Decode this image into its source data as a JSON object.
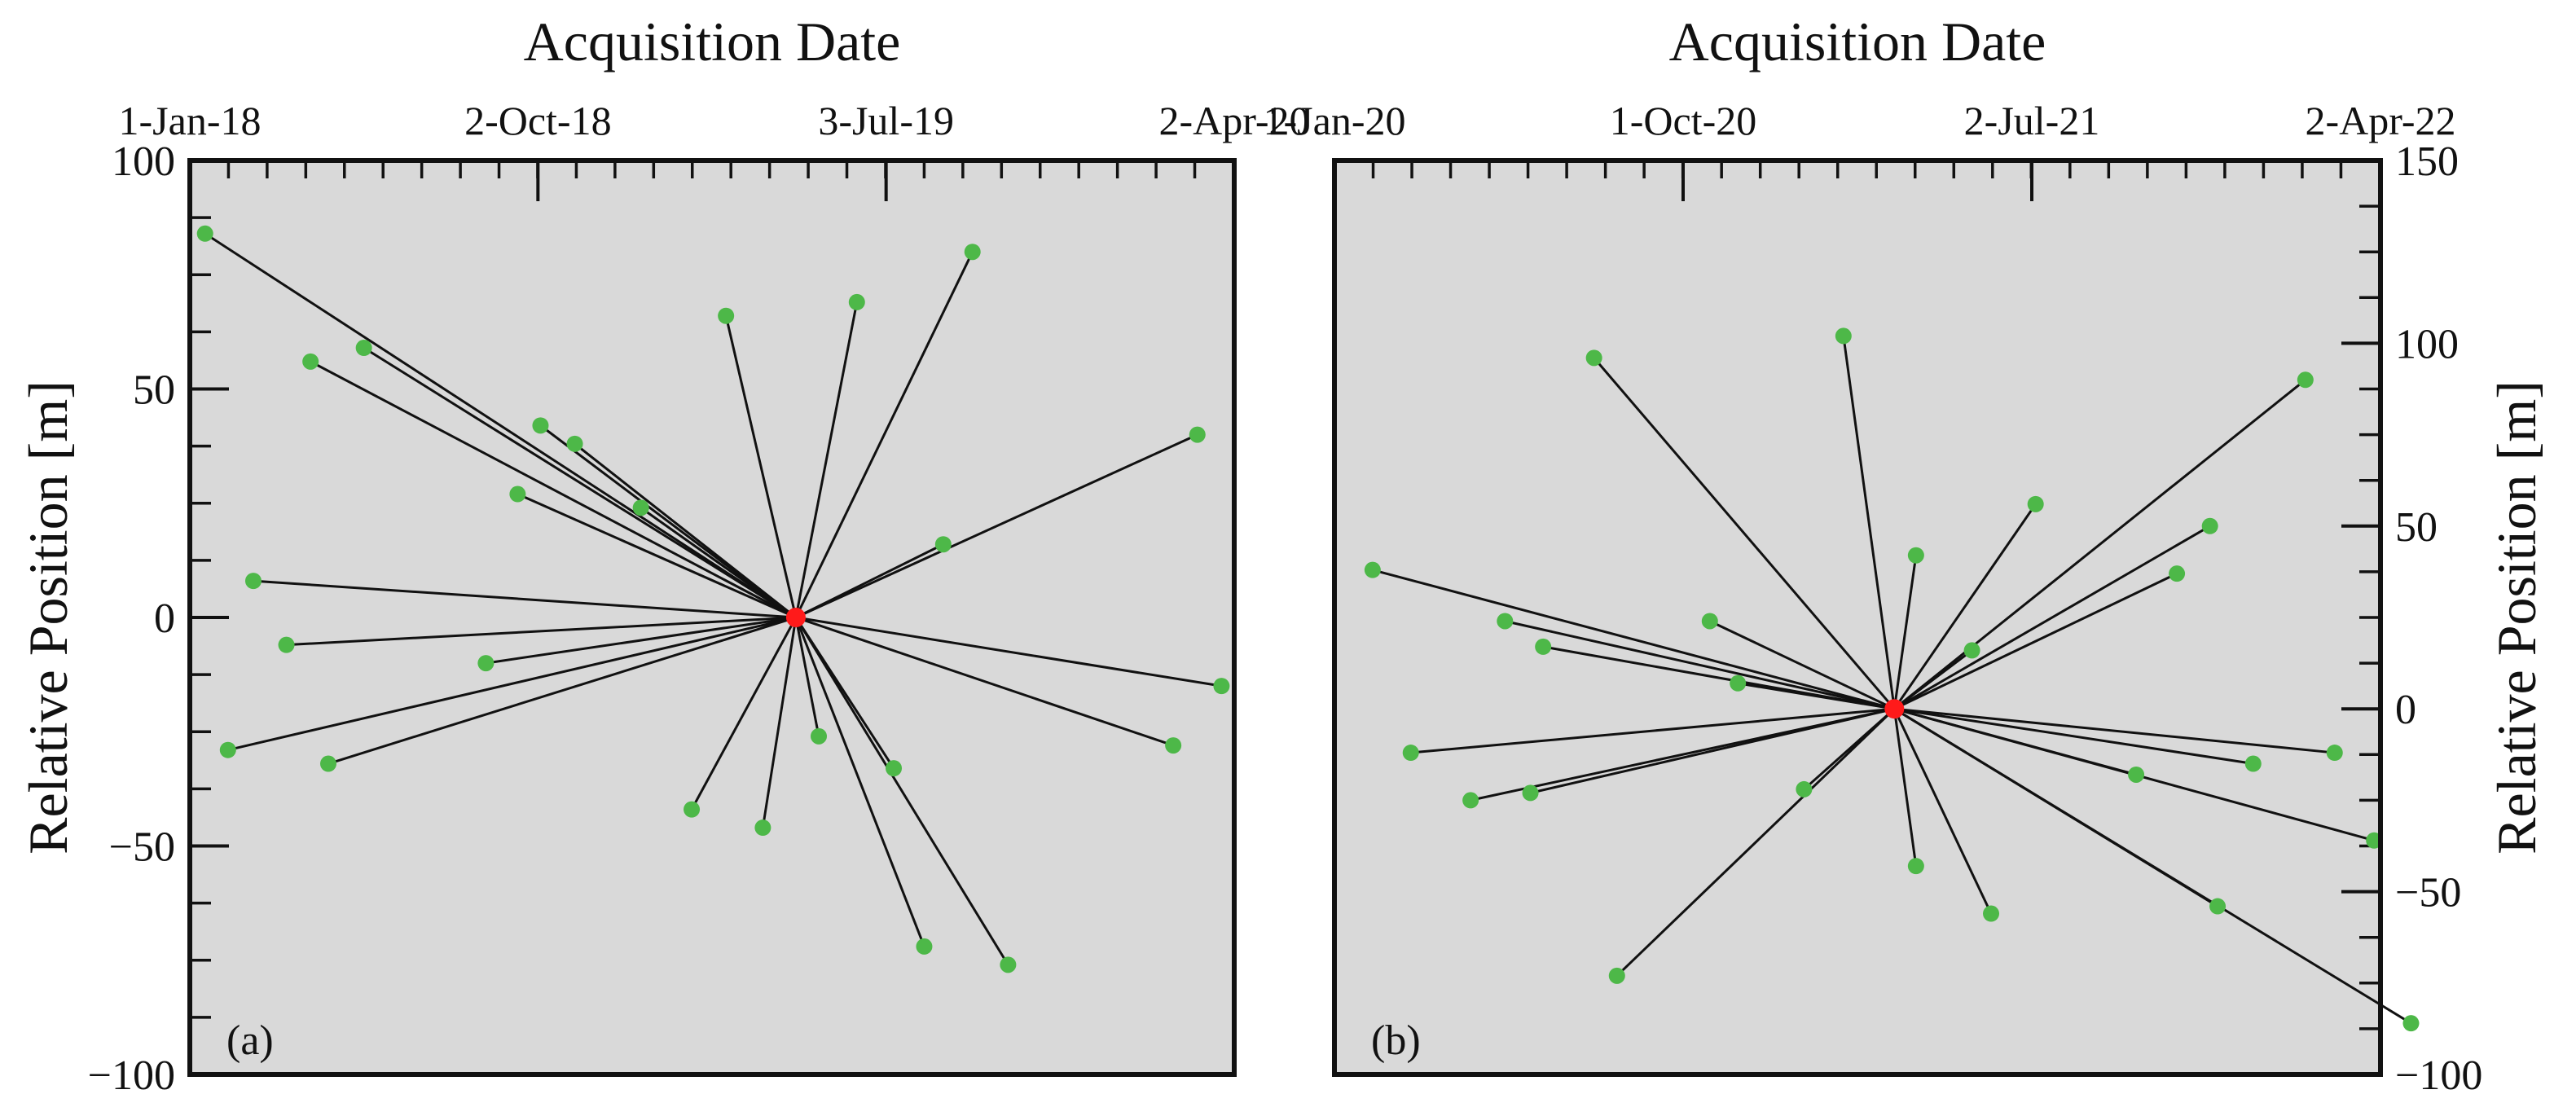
{
  "colors": {
    "plot_background": "#d9d9d9",
    "secondary_point": "#4db848",
    "reference_point": "#ff1a1a",
    "baseline_line": "#111111"
  },
  "chart_data": [
    {
      "type": "scatter",
      "panel_label": "(a)",
      "title": "Acquisition Date",
      "xlabel": "Acquisition Date",
      "ylabel": "Relative Position [m]",
      "x_axis": "date",
      "x_position": "top",
      "y_position": "left",
      "xlim": [
        "2018-01-01",
        "2020-04-02"
      ],
      "ylim": [
        -100,
        100
      ],
      "x_ticks": [
        "2018-01-01",
        "2018-10-02",
        "2019-07-03",
        "2020-04-02"
      ],
      "x_tick_labels": [
        "1-Jan-18",
        "2-Oct-18",
        "3-Jul-19",
        "2-Apr-20"
      ],
      "y_ticks": [
        -100,
        -50,
        0,
        50,
        100
      ],
      "y_tick_labels": [
        "−100",
        "−50",
        "0",
        "50",
        "100"
      ],
      "reference": {
        "x": "2019-04-23",
        "y": 0
      },
      "points": [
        {
          "x": "2018-01-13",
          "y": 84
        },
        {
          "x": "2018-04-06",
          "y": 56
        },
        {
          "x": "2018-05-18",
          "y": 59
        },
        {
          "x": "2018-09-16",
          "y": 27
        },
        {
          "x": "2018-10-04",
          "y": 42
        },
        {
          "x": "2018-10-31",
          "y": 38
        },
        {
          "x": "2018-12-22",
          "y": 24
        },
        {
          "x": "2019-02-27",
          "y": 66
        },
        {
          "x": "2019-06-10",
          "y": 69
        },
        {
          "x": "2019-09-09",
          "y": 80
        },
        {
          "x": "2019-08-17",
          "y": 16
        },
        {
          "x": "2020-03-04",
          "y": 40
        },
        {
          "x": "2018-02-20",
          "y": 8
        },
        {
          "x": "2018-03-18",
          "y": -6
        },
        {
          "x": "2018-08-22",
          "y": -10
        },
        {
          "x": "2020-03-23",
          "y": -15
        },
        {
          "x": "2020-02-14",
          "y": -28
        },
        {
          "x": "2018-01-31",
          "y": -29
        },
        {
          "x": "2018-04-20",
          "y": -32
        },
        {
          "x": "2019-01-31",
          "y": -42
        },
        {
          "x": "2019-03-28",
          "y": -46
        },
        {
          "x": "2019-05-11",
          "y": -26
        },
        {
          "x": "2019-07-09",
          "y": -33
        },
        {
          "x": "2019-08-02",
          "y": -72
        },
        {
          "x": "2019-10-07",
          "y": -76
        }
      ]
    },
    {
      "type": "scatter",
      "panel_label": "(b)",
      "title": "Acquisition Date",
      "xlabel": "Acquisition Date",
      "ylabel": "Relative Position [m]",
      "x_axis": "date",
      "x_position": "top",
      "y_position": "right",
      "xlim": [
        "2020-01-01",
        "2022-04-02"
      ],
      "ylim": [
        -100,
        150
      ],
      "x_ticks": [
        "2020-01-01",
        "2020-10-01",
        "2021-07-02",
        "2022-04-02"
      ],
      "x_tick_labels": [
        "1-Jan-20",
        "1-Oct-20",
        "2-Jul-21",
        "2-Apr-22"
      ],
      "y_ticks": [
        -100,
        -50,
        0,
        50,
        100,
        150
      ],
      "y_tick_labels": [
        "−100",
        "−50",
        "0",
        "50",
        "100",
        "150"
      ],
      "reference": {
        "x": "2021-03-16",
        "y": 0
      },
      "points": [
        {
          "x": "2020-01-31",
          "y": 38
        },
        {
          "x": "2020-07-23",
          "y": 96
        },
        {
          "x": "2021-02-04",
          "y": 102
        },
        {
          "x": "2020-05-14",
          "y": 24
        },
        {
          "x": "2020-06-13",
          "y": 17
        },
        {
          "x": "2020-10-22",
          "y": 24
        },
        {
          "x": "2020-11-13",
          "y": 7
        },
        {
          "x": "2021-04-02",
          "y": 42
        },
        {
          "x": "2021-07-05",
          "y": 56
        },
        {
          "x": "2021-05-16",
          "y": 16
        },
        {
          "x": "2021-10-24",
          "y": 37
        },
        {
          "x": "2021-11-19",
          "y": 50
        },
        {
          "x": "2022-02-02",
          "y": 90
        },
        {
          "x": "2020-03-01",
          "y": -12
        },
        {
          "x": "2020-04-17",
          "y": -25
        },
        {
          "x": "2020-06-03",
          "y": -23
        },
        {
          "x": "2021-01-04",
          "y": -22
        },
        {
          "x": "2021-09-22",
          "y": -18
        },
        {
          "x": "2021-12-23",
          "y": -15
        },
        {
          "x": "2022-02-25",
          "y": -12
        },
        {
          "x": "2022-03-28",
          "y": -36
        },
        {
          "x": "2021-04-02",
          "y": -43
        },
        {
          "x": "2021-05-31",
          "y": -56
        },
        {
          "x": "2020-08-10",
          "y": -73
        },
        {
          "x": "2021-11-25",
          "y": -54
        },
        {
          "x": "2022-04-26",
          "y": -86
        }
      ]
    }
  ]
}
